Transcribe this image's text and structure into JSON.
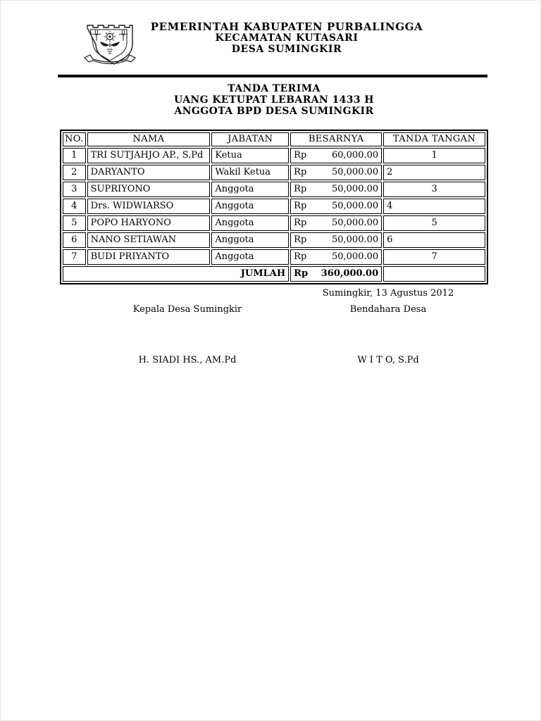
{
  "letterhead": {
    "line1": "PEMERINTAH KABUPATEN PURBALINGGA",
    "line2": "KECAMATAN KUTASARI",
    "line3": "DESA SUMINGKIR",
    "logo": "purbalingga-coat-of-arms"
  },
  "title": {
    "line1": "TANDA TERIMA",
    "line2": "UANG KETUPAT LEBARAN 1433 H",
    "line3": "ANGGOTA BPD DESA SUMINGKIR"
  },
  "table": {
    "headers": [
      "NO.",
      "NAMA",
      "JABATAN",
      "BESARNYA",
      "TANDA TANGAN"
    ],
    "rows": [
      {
        "no": "1",
        "nama": "TRI SUTJAHJO AP., S.Pd",
        "jabatan": "Ketua",
        "currency": "Rp",
        "amount": "60,000.00",
        "signature": "1",
        "signature_align": "center"
      },
      {
        "no": "2",
        "nama": "DARYANTO",
        "jabatan": "Wakil Ketua",
        "currency": "Rp",
        "amount": "50,000.00",
        "signature": "2",
        "signature_align": "left"
      },
      {
        "no": "3",
        "nama": "SUPRIYONO",
        "jabatan": "Anggota",
        "currency": "Rp",
        "amount": "50,000.00",
        "signature": "3",
        "signature_align": "center"
      },
      {
        "no": "4",
        "nama": "Drs. WIDWIARSO",
        "jabatan": "Anggota",
        "currency": "Rp",
        "amount": "50,000.00",
        "signature": "4",
        "signature_align": "left"
      },
      {
        "no": "5",
        "nama": "POPO HARYONO",
        "jabatan": "Anggota",
        "currency": "Rp",
        "amount": "50,000.00",
        "signature": "5",
        "signature_align": "center"
      },
      {
        "no": "6",
        "nama": "NANO SETIAWAN",
        "jabatan": "Anggota",
        "currency": "Rp",
        "amount": "50,000.00",
        "signature": "6",
        "signature_align": "left"
      },
      {
        "no": "7",
        "nama": "BUDI PRIYANTO",
        "jabatan": "Anggota",
        "currency": "Rp",
        "amount": "50,000.00",
        "signature": "7",
        "signature_align": "center"
      }
    ],
    "total": {
      "label": "JUMLAH",
      "currency": "Rp",
      "amount": "360,000.00"
    }
  },
  "signoff": {
    "date_line": "Sumingkir, 13 Agustus 2012",
    "left_role": "Kepala Desa Sumingkir",
    "right_role": "Bendahara Desa",
    "left_name": "H. SIADI HS., AM.Pd",
    "right_name": "W I T O, S.Pd"
  },
  "colors": {
    "ink": "#000000",
    "paper": "#ffffff"
  }
}
